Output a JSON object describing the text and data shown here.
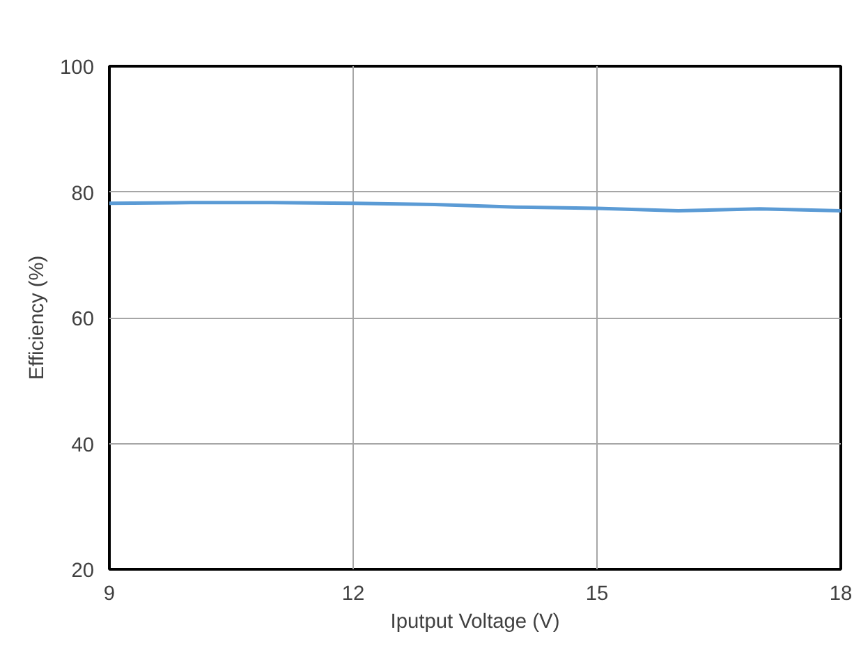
{
  "chart_data": {
    "type": "line",
    "xlabel": "Iputput Voltage (V)",
    "ylabel": "Efficiency (%)",
    "x": [
      9,
      10,
      11,
      12,
      13,
      14,
      15,
      16,
      17,
      18
    ],
    "series": [
      {
        "color": "#5b9bd5",
        "values": [
          78.2,
          78.3,
          78.3,
          78.2,
          78.0,
          77.6,
          77.4,
          77.0,
          77.3,
          77.0
        ]
      }
    ],
    "xlim": [
      9,
      18
    ],
    "xticks": [
      9,
      12,
      15,
      18
    ],
    "ylim": [
      20,
      100
    ],
    "yticks": [
      20,
      40,
      60,
      80,
      100
    ],
    "grid": true,
    "marker": "none",
    "line_style": "solid"
  }
}
